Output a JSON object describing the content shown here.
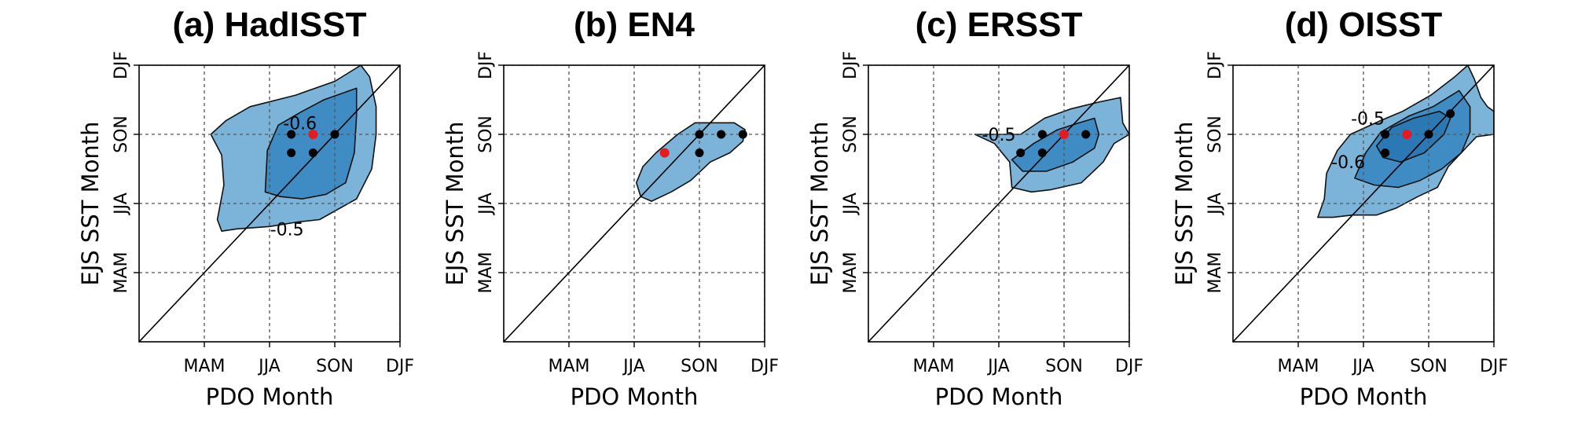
{
  "figure": {
    "colors": {
      "outer": "#7bb3d9",
      "inner": "#3f8cc5",
      "dot": "#000000",
      "max_dot": "#e8191f"
    }
  },
  "chart_data": [
    {
      "type": "contour",
      "title": "(a) HadISST",
      "xlabel": "PDO Month",
      "ylabel": "EJS SST Month",
      "xticks": [
        "MAM",
        "JJA",
        "SON",
        "DJF"
      ],
      "yticks": [
        "MAM",
        "JJA",
        "SON",
        "DJF"
      ],
      "xlim": [
        1,
        13
      ],
      "ylim": [
        1,
        13
      ],
      "tick_month_index": [
        4,
        7,
        10,
        13
      ],
      "grid": true,
      "diagonal": true,
      "contour_levels": [
        -0.5,
        -0.6
      ],
      "contour_labels": [
        {
          "text": "-0.6",
          "x": 8.4,
          "y": 10.5
        },
        {
          "text": "-0.5",
          "x": 7.8,
          "y": 5.9
        }
      ],
      "outer_region": [
        [
          4.3,
          10.0
        ],
        [
          5.0,
          10.6
        ],
        [
          6.1,
          11.2
        ],
        [
          8.2,
          11.7
        ],
        [
          10.0,
          12.3
        ],
        [
          11.2,
          13.0
        ],
        [
          11.6,
          12.5
        ],
        [
          11.9,
          11.2
        ],
        [
          11.9,
          10.0
        ],
        [
          11.7,
          8.5
        ],
        [
          11.0,
          7.2
        ],
        [
          9.3,
          6.3
        ],
        [
          8.3,
          6.2
        ],
        [
          7.0,
          6.0
        ],
        [
          5.5,
          5.9
        ],
        [
          4.8,
          5.8
        ],
        [
          4.6,
          6.3
        ],
        [
          4.9,
          7.8
        ],
        [
          4.8,
          9.1
        ]
      ],
      "inner_region": [
        [
          6.8,
          7.5
        ],
        [
          6.9,
          9.3
        ],
        [
          7.4,
          10.4
        ],
        [
          8.5,
          11.0
        ],
        [
          9.5,
          11.5
        ],
        [
          11.0,
          12.0
        ],
        [
          11.0,
          10.8
        ],
        [
          10.9,
          9.2
        ],
        [
          10.5,
          7.9
        ],
        [
          9.6,
          7.4
        ],
        [
          8.5,
          7.2
        ],
        [
          7.5,
          7.3
        ]
      ],
      "points": [
        [
          8.0,
          10.0
        ],
        [
          8.0,
          9.2
        ],
        [
          9.0,
          9.2
        ],
        [
          10.0,
          10.0
        ]
      ],
      "max_point": [
        9.0,
        10.0
      ]
    },
    {
      "type": "contour",
      "title": "(b) EN4",
      "xlabel": "PDO Month",
      "ylabel": "EJS SST Month",
      "xticks": [
        "MAM",
        "JJA",
        "SON",
        "DJF"
      ],
      "yticks": [
        "MAM",
        "JJA",
        "SON",
        "DJF"
      ],
      "xlim": [
        1,
        13
      ],
      "ylim": [
        1,
        13
      ],
      "tick_month_index": [
        4,
        7,
        10,
        13
      ],
      "grid": true,
      "diagonal": true,
      "contour_levels": [
        -0.5
      ],
      "contour_labels": [],
      "outer_region": [
        [
          7.4,
          8.6
        ],
        [
          8.0,
          9.2
        ],
        [
          9.0,
          10.0
        ],
        [
          9.8,
          10.5
        ],
        [
          10.7,
          10.5
        ],
        [
          11.6,
          10.5
        ],
        [
          12.1,
          10.2
        ],
        [
          12.0,
          9.7
        ],
        [
          11.4,
          9.2
        ],
        [
          10.5,
          8.8
        ],
        [
          9.6,
          8.0
        ],
        [
          8.7,
          7.5
        ],
        [
          7.8,
          7.1
        ],
        [
          7.3,
          7.3
        ],
        [
          7.1,
          7.9
        ]
      ],
      "inner_region": [],
      "points": [
        [
          10.0,
          10.0
        ],
        [
          10.0,
          9.2
        ],
        [
          11.0,
          10.0
        ],
        [
          12.0,
          10.0
        ]
      ],
      "max_point": [
        8.4,
        9.2
      ]
    },
    {
      "type": "contour",
      "title": "(c) ERSST",
      "xlabel": "PDO Month",
      "ylabel": "EJS SST Month",
      "xticks": [
        "MAM",
        "JJA",
        "SON",
        "DJF"
      ],
      "yticks": [
        "MAM",
        "JJA",
        "SON",
        "DJF"
      ],
      "xlim": [
        1,
        13
      ],
      "ylim": [
        1,
        13
      ],
      "tick_month_index": [
        4,
        7,
        10,
        13
      ],
      "grid": true,
      "diagonal": true,
      "contour_levels": [
        -0.5
      ],
      "contour_labels": [
        {
          "text": "-0.5",
          "x": 7.0,
          "y": 10.0
        }
      ],
      "outer_region": [
        [
          5.9,
          10.0
        ],
        [
          8.0,
          10.0
        ],
        [
          9.1,
          10.7
        ],
        [
          10.3,
          11.1
        ],
        [
          11.6,
          11.4
        ],
        [
          12.6,
          11.6
        ],
        [
          12.7,
          10.5
        ],
        [
          13.0,
          10.0
        ],
        [
          12.3,
          9.6
        ],
        [
          11.8,
          8.8
        ],
        [
          10.8,
          7.9
        ],
        [
          9.4,
          7.6
        ],
        [
          8.5,
          7.5
        ],
        [
          7.6,
          7.7
        ],
        [
          7.5,
          8.8
        ],
        [
          6.8,
          9.6
        ]
      ],
      "inner_region": [
        [
          7.6,
          8.9
        ],
        [
          8.6,
          9.6
        ],
        [
          9.7,
          10.2
        ],
        [
          10.7,
          10.5
        ],
        [
          11.4,
          10.7
        ],
        [
          11.6,
          10.0
        ],
        [
          11.4,
          9.4
        ],
        [
          10.4,
          8.8
        ],
        [
          9.2,
          8.4
        ],
        [
          8.1,
          8.4
        ]
      ],
      "points": [
        [
          9.0,
          10.0
        ],
        [
          8.0,
          9.2
        ],
        [
          9.0,
          9.2
        ],
        [
          11.0,
          10.0
        ]
      ],
      "max_point": [
        10.0,
        10.0
      ]
    },
    {
      "type": "contour",
      "title": "(d) OISST",
      "xlabel": "PDO Month",
      "ylabel": "EJS SST Month",
      "xticks": [
        "MAM",
        "JJA",
        "SON",
        "DJF"
      ],
      "yticks": [
        "MAM",
        "JJA",
        "SON",
        "DJF"
      ],
      "xlim": [
        1,
        13
      ],
      "ylim": [
        1,
        13
      ],
      "tick_month_index": [
        4,
        7,
        10,
        13
      ],
      "grid": true,
      "diagonal": true,
      "contour_levels": [
        -0.5,
        -0.6
      ],
      "contour_labels": [
        {
          "text": "-0.5",
          "x": 7.2,
          "y": 10.7
        },
        {
          "text": "-0.6",
          "x": 6.3,
          "y": 8.8
        }
      ],
      "outer_region": [
        [
          4.9,
          6.4
        ],
        [
          5.2,
          7.2
        ],
        [
          5.3,
          8.3
        ],
        [
          5.8,
          9.3
        ],
        [
          6.4,
          10.0
        ],
        [
          7.8,
          10.6
        ],
        [
          8.8,
          11.0
        ],
        [
          10.1,
          11.7
        ],
        [
          11.2,
          12.5
        ],
        [
          11.8,
          13.0
        ],
        [
          12.1,
          12.4
        ],
        [
          12.4,
          11.6
        ],
        [
          12.7,
          11.2
        ],
        [
          13.0,
          11.0
        ],
        [
          13.0,
          10.0
        ],
        [
          12.2,
          9.9
        ],
        [
          11.6,
          9.3
        ],
        [
          10.9,
          8.6
        ],
        [
          10.4,
          7.7
        ],
        [
          9.5,
          7.3
        ],
        [
          8.5,
          6.8
        ],
        [
          7.6,
          6.5
        ],
        [
          6.5,
          6.5
        ],
        [
          5.6,
          6.4
        ]
      ],
      "inner_region": [
        [
          6.6,
          8.1
        ],
        [
          7.1,
          9.2
        ],
        [
          7.8,
          10.1
        ],
        [
          9.1,
          10.8
        ],
        [
          10.2,
          11.2
        ],
        [
          11.4,
          11.9
        ],
        [
          11.9,
          11.2
        ],
        [
          11.9,
          10.1
        ],
        [
          11.5,
          9.2
        ],
        [
          10.6,
          8.5
        ],
        [
          9.6,
          8.0
        ],
        [
          8.6,
          7.7
        ],
        [
          7.5,
          7.8
        ]
      ],
      "inner2_region": [
        [
          7.6,
          9.5
        ],
        [
          8.3,
          10.3
        ],
        [
          9.3,
          10.7
        ],
        [
          10.5,
          11.0
        ],
        [
          11.0,
          10.7
        ],
        [
          10.7,
          10.0
        ],
        [
          9.8,
          9.2
        ],
        [
          8.7,
          8.8
        ],
        [
          7.9,
          9.0
        ]
      ],
      "points": [
        [
          8.0,
          10.0
        ],
        [
          8.0,
          9.2
        ],
        [
          10.0,
          10.0
        ],
        [
          11.0,
          10.9
        ]
      ],
      "max_point": [
        9.0,
        10.0
      ]
    }
  ]
}
